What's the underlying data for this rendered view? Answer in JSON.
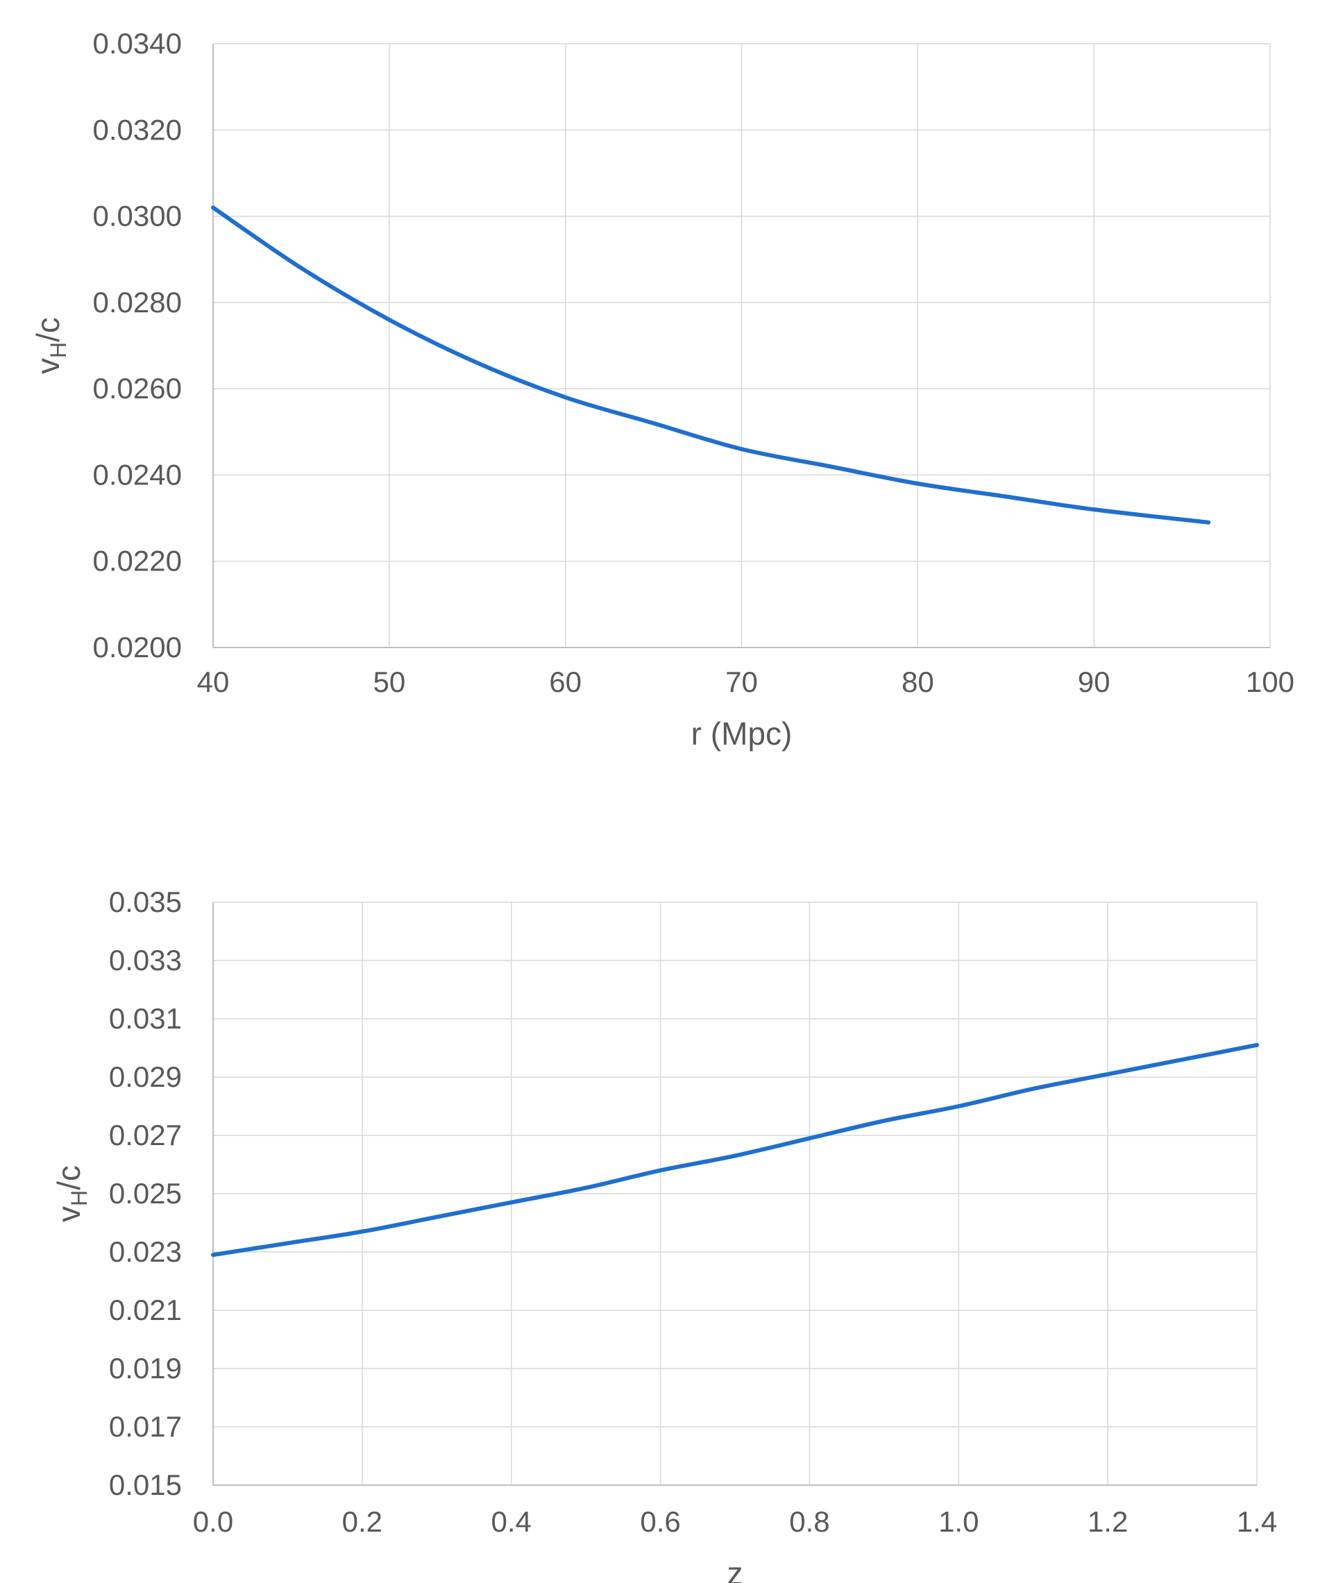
{
  "chart_data": [
    {
      "type": "line",
      "title": "",
      "xlabel": "r (Mpc)",
      "ylabel": {
        "main": "v",
        "sub": "H",
        "rest": "/c"
      },
      "xlim": [
        40,
        100
      ],
      "ylim": [
        0.02,
        0.034
      ],
      "xticks": [
        "40",
        "50",
        "60",
        "70",
        "80",
        "90",
        "100"
      ],
      "yticks": [
        "0.0200",
        "0.0220",
        "0.0240",
        "0.0260",
        "0.0280",
        "0.0300",
        "0.0320",
        "0.0340"
      ],
      "grid": true,
      "legend": "none",
      "series": [
        {
          "color": "#1f6fcf",
          "x": [
            40,
            45,
            50,
            55,
            60,
            65,
            70,
            75,
            80,
            85,
            90,
            96.5
          ],
          "y": [
            0.0302,
            0.0288,
            0.0276,
            0.0266,
            0.0258,
            0.0252,
            0.0246,
            0.0242,
            0.0238,
            0.0235,
            0.0232,
            0.0229
          ]
        }
      ]
    },
    {
      "type": "line",
      "title": "",
      "xlabel": "z",
      "ylabel": {
        "main": "v",
        "sub": "H",
        "rest": "/c"
      },
      "xlim": [
        0.0,
        1.4
      ],
      "ylim": [
        0.015,
        0.035
      ],
      "xticks": [
        "0.0",
        "0.2",
        "0.4",
        "0.6",
        "0.8",
        "1.0",
        "1.2",
        "1.4"
      ],
      "yticks": [
        "0.015",
        "0.017",
        "0.019",
        "0.021",
        "0.023",
        "0.025",
        "0.027",
        "0.029",
        "0.031",
        "0.033",
        "0.035"
      ],
      "grid": true,
      "legend": "none",
      "series": [
        {
          "color": "#1f6fcf",
          "x": [
            0.0,
            0.1,
            0.2,
            0.3,
            0.4,
            0.5,
            0.6,
            0.7,
            0.8,
            0.9,
            1.0,
            1.1,
            1.2,
            1.3,
            1.4
          ],
          "y": [
            0.0229,
            0.0233,
            0.0237,
            0.0242,
            0.0247,
            0.0252,
            0.0258,
            0.0263,
            0.0269,
            0.0275,
            0.028,
            0.0286,
            0.0291,
            0.0296,
            0.0301
          ]
        }
      ]
    }
  ]
}
